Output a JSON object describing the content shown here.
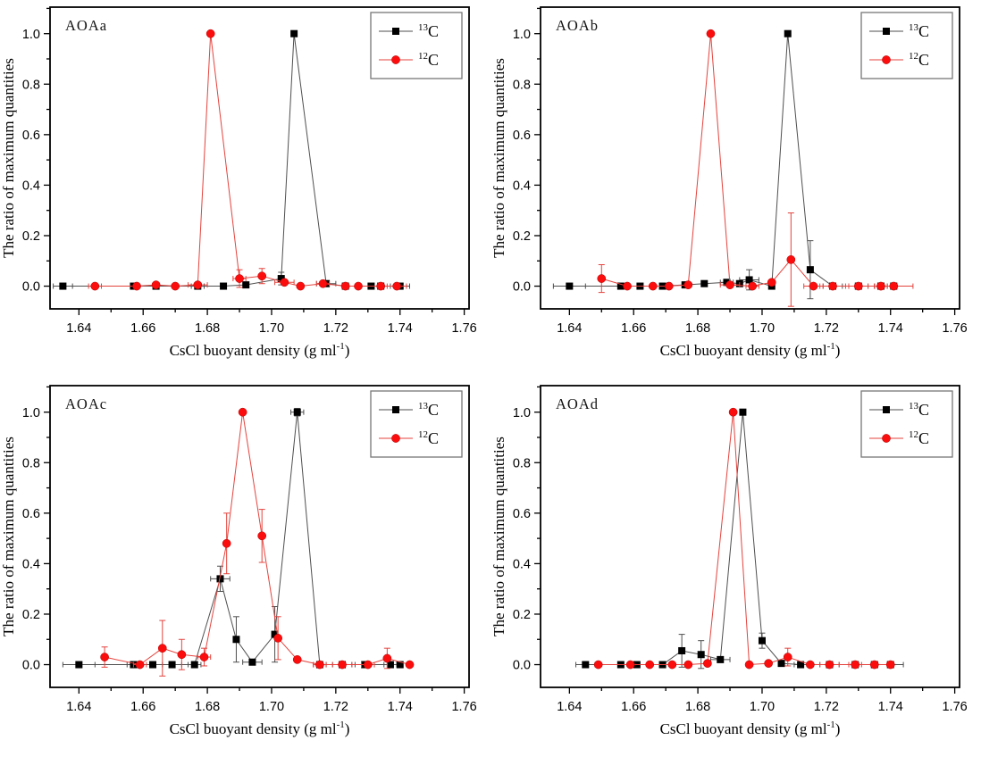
{
  "figure": {
    "description_labels": [
      "AOAa",
      "AOAb",
      "AOAc",
      "AOAd"
    ]
  },
  "chart_data": {
    "type": "line",
    "layout": "2x2-panel-grid",
    "shared": {
      "xlabel": {
        "prefix": "CsCl buoyant density (g ml",
        "sup": "-1",
        "suffix": ")"
      },
      "ylabel": "The ratio of maximum quantities",
      "xlim": [
        1.631,
        1.7615
      ],
      "ylim": [
        -0.09,
        1.105
      ],
      "x_major_ticks": [
        1.64,
        1.66,
        1.68,
        1.7,
        1.72,
        1.74,
        1.76
      ],
      "x_minor_step": 0.01,
      "y_major_ticks": [
        0.0,
        0.2,
        0.4,
        0.6,
        0.8,
        1.0
      ],
      "y_minor_step": 0.1,
      "grid": false,
      "legend_position": "top-right",
      "frame_color": "#000000",
      "legend_border_color": "#777777",
      "series_styles": [
        {
          "name": "13C",
          "label_sup": "13",
          "label_base": "C",
          "marker": "square",
          "marker_color": "#000000",
          "line_color": "#4f4f4f"
        },
        {
          "name": "12C",
          "label_sup": "12",
          "label_base": "C",
          "marker": "circle",
          "marker_color": "#fb0d0d",
          "line_color": "#e4433d"
        }
      ]
    },
    "panels": [
      {
        "label": "AOAa",
        "series": [
          {
            "x": [
              1.635,
              1.657,
              1.664,
              1.677,
              1.685,
              1.692,
              1.703,
              1.707,
              1.717,
              1.723,
              1.731,
              1.734,
              1.74
            ],
            "y": [
              0,
              0,
              0,
              0,
              0,
              0.005,
              0.03,
              1.0,
              0.01,
              0,
              0,
              0,
              0
            ],
            "yerr": [
              0,
              0,
              0,
              0,
              0,
              0,
              0.025,
              0,
              0,
              0,
              0,
              0,
              0
            ],
            "xerr": [
              0.003,
              0,
              0,
              0.002,
              0,
              0,
              0,
              0,
              0.003,
              0,
              0,
              0,
              0.003
            ]
          },
          {
            "x": [
              1.645,
              1.658,
              1.664,
              1.67,
              1.677,
              1.681,
              1.69,
              1.697,
              1.704,
              1.709,
              1.716,
              1.723,
              1.727,
              1.734,
              1.739
            ],
            "y": [
              0,
              0,
              0.005,
              0,
              0.005,
              1.0,
              0.03,
              0.04,
              0.015,
              0,
              0.01,
              0,
              0,
              0,
              0
            ],
            "yerr": [
              0,
              0,
              0,
              0,
              0,
              0,
              0.035,
              0.03,
              0,
              0,
              0,
              0,
              0,
              0,
              0
            ],
            "xerr": [
              0.002,
              0,
              0,
              0,
              0.003,
              0,
              0.002,
              0,
              0.003,
              0,
              0.002,
              0,
              0,
              0,
              0.003
            ]
          }
        ]
      },
      {
        "label": "AOAb",
        "series": [
          {
            "x": [
              1.64,
              1.656,
              1.662,
              1.669,
              1.676,
              1.682,
              1.689,
              1.693,
              1.696,
              1.703,
              1.708,
              1.715,
              1.722,
              1.73,
              1.737,
              1.741
            ],
            "y": [
              0,
              0,
              0,
              0,
              0.005,
              0.01,
              0.015,
              0.01,
              0.025,
              0,
              1.0,
              0.065,
              0,
              0,
              0,
              0
            ],
            "yerr": [
              0,
              0,
              0,
              0,
              0,
              0,
              0.01,
              0,
              0.04,
              0,
              0,
              0.115,
              0,
              0,
              0,
              0
            ],
            "xerr": [
              0.005,
              0,
              0,
              0,
              0,
              0,
              0.002,
              0,
              0.003,
              0,
              0,
              0,
              0.003,
              0.003,
              0.002,
              0
            ]
          },
          {
            "x": [
              1.65,
              1.658,
              1.666,
              1.671,
              1.677,
              1.684,
              1.69,
              1.697,
              1.703,
              1.709,
              1.716,
              1.722,
              1.73,
              1.737,
              1.741
            ],
            "y": [
              0.03,
              0,
              0,
              0,
              0.005,
              1.0,
              0.005,
              0,
              0.015,
              0.105,
              0,
              0,
              0,
              0,
              0
            ],
            "yerr": [
              0.055,
              0,
              0,
              0,
              0,
              0,
              0,
              0,
              0,
              0.185,
              0,
              0,
              0,
              0,
              0
            ],
            "xerr": [
              0,
              0,
              0,
              0,
              0,
              0,
              0.003,
              0.002,
              0,
              0,
              0.003,
              0.004,
              0.003,
              0.002,
              0.006
            ]
          }
        ]
      },
      {
        "label": "AOAc",
        "series": [
          {
            "x": [
              1.64,
              1.657,
              1.663,
              1.669,
              1.676,
              1.684,
              1.689,
              1.694,
              1.701,
              1.708,
              1.715,
              1.722,
              1.729,
              1.737,
              1.74
            ],
            "y": [
              0,
              0,
              0,
              0,
              0,
              0.34,
              0.1,
              0.01,
              0.12,
              1.0,
              0,
              0,
              0,
              0,
              0
            ],
            "yerr": [
              0,
              0,
              0,
              0,
              0,
              0.05,
              0.09,
              0.01,
              0.11,
              0.015,
              0,
              0,
              0,
              0,
              0
            ],
            "xerr": [
              0.005,
              0.002,
              0,
              0.003,
              0.002,
              0.003,
              0,
              0.003,
              0,
              0.002,
              0.002,
              0.003,
              0.003,
              0.002,
              0
            ]
          },
          {
            "x": [
              1.648,
              1.659,
              1.666,
              1.672,
              1.679,
              1.686,
              1.691,
              1.697,
              1.702,
              1.708,
              1.715,
              1.722,
              1.73,
              1.736,
              1.743
            ],
            "y": [
              0.03,
              0,
              0.065,
              0.04,
              0.03,
              0.48,
              1.0,
              0.51,
              0.105,
              0.02,
              0,
              0,
              0,
              0.025,
              0
            ],
            "yerr": [
              0.04,
              0,
              0.11,
              0.06,
              0.035,
              0.12,
              0,
              0.105,
              0.085,
              0.01,
              0,
              0,
              0,
              0.04,
              0
            ],
            "xerr": [
              0,
              0.002,
              0,
              0,
              0.002,
              0,
              0,
              0,
              0,
              0,
              0.002,
              0.003,
              0.002,
              0,
              0
            ]
          }
        ]
      },
      {
        "label": "AOAd",
        "series": [
          {
            "x": [
              1.645,
              1.656,
              1.661,
              1.669,
              1.675,
              1.681,
              1.687,
              1.694,
              1.7,
              1.706,
              1.712,
              1.721,
              1.729,
              1.735,
              1.74
            ],
            "y": [
              0,
              0,
              0,
              0,
              0.055,
              0.04,
              0.02,
              1.0,
              0.095,
              0.005,
              0,
              0,
              0,
              0,
              0
            ],
            "yerr": [
              0,
              0,
              0,
              0,
              0.065,
              0.055,
              0.005,
              0,
              0.03,
              0.01,
              0,
              0,
              0,
              0,
              0
            ],
            "xerr": [
              0.003,
              0,
              0,
              0,
              0,
              0,
              0.003,
              0,
              0,
              0,
              0.002,
              0.003,
              0,
              0,
              0.004
            ]
          },
          {
            "x": [
              1.649,
              1.659,
              1.665,
              1.672,
              1.677,
              1.683,
              1.691,
              1.696,
              1.702,
              1.708,
              1.715,
              1.721,
              1.729,
              1.735,
              1.74
            ],
            "y": [
              0,
              0,
              0,
              0,
              0,
              0.005,
              1.0,
              0,
              0.005,
              0.03,
              0,
              0,
              0,
              0,
              0
            ],
            "yerr": [
              0,
              0,
              0,
              0,
              0,
              0,
              0,
              0,
              0,
              0.035,
              0,
              0,
              0,
              0,
              0
            ],
            "xerr": [
              0,
              0,
              0,
              0,
              0,
              0,
              0,
              0,
              0,
              0,
              0,
              0.003,
              0.002,
              0,
              0
            ]
          }
        ]
      }
    ]
  }
}
